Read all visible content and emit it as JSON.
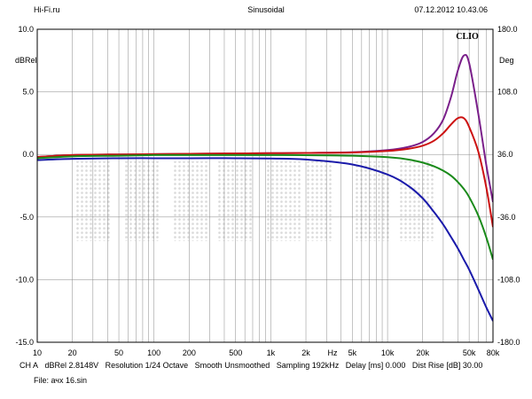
{
  "header": {
    "left": "Hi-Fi.ru",
    "center": "Sinusoidal",
    "right": "07.12.2012 10.43.06"
  },
  "chart_data": {
    "type": "line",
    "brand": "CLIO",
    "x_scale": "log",
    "xlim": [
      10,
      80000
    ],
    "ylim": [
      -15,
      10
    ],
    "y2lim": [
      -180,
      180
    ],
    "ylabel": "dBRel",
    "y2label": "Deg",
    "xunit_label": "Hz",
    "watermark": "Hi-Fi.ru",
    "grid": true,
    "x_ticks": [
      {
        "v": 10,
        "label": "10"
      },
      {
        "v": 20,
        "label": "20"
      },
      {
        "v": 50,
        "label": "50"
      },
      {
        "v": 100,
        "label": "100"
      },
      {
        "v": 200,
        "label": "200"
      },
      {
        "v": 500,
        "label": "500"
      },
      {
        "v": 1000,
        "label": "1k"
      },
      {
        "v": 2000,
        "label": "2k"
      },
      {
        "v": 5000,
        "label": "5k"
      },
      {
        "v": 10000,
        "label": "10k"
      },
      {
        "v": 20000,
        "label": "20k"
      },
      {
        "v": 50000,
        "label": "50k"
      },
      {
        "v": 80000,
        "label": "80k"
      }
    ],
    "y_ticks": [
      {
        "v": 10,
        "label": "10.0"
      },
      {
        "v": 5,
        "label": "5.0"
      },
      {
        "v": 0,
        "label": "0.0"
      },
      {
        "v": -5,
        "label": "-5.0"
      },
      {
        "v": -10,
        "label": "-10.0"
      },
      {
        "v": -15,
        "label": "-15.0"
      }
    ],
    "y2_ticks": [
      {
        "v": 180,
        "label": "180.0"
      },
      {
        "v": 108,
        "label": "108.0"
      },
      {
        "v": 36,
        "label": "36.0"
      },
      {
        "v": -36,
        "label": "-36.0"
      },
      {
        "v": -108,
        "label": "-108.0"
      },
      {
        "v": -180,
        "label": "-180.0"
      }
    ],
    "x": [
      10,
      20,
      50,
      100,
      200,
      500,
      1000,
      2000,
      5000,
      10000,
      15000,
      20000,
      25000,
      30000,
      35000,
      40000,
      45000,
      50000,
      60000,
      70000,
      80000
    ],
    "series": [
      {
        "color": "#7a1f8a",
        "values": [
          -0.2,
          -0.05,
          0.0,
          0.02,
          0.05,
          0.08,
          0.1,
          0.12,
          0.18,
          0.35,
          0.6,
          1.0,
          1.7,
          2.8,
          4.6,
          6.7,
          7.9,
          7.3,
          3.2,
          -0.8,
          -3.8
        ]
      },
      {
        "color": "#cc1111",
        "values": [
          -0.2,
          -0.05,
          0.0,
          0.02,
          0.05,
          0.08,
          0.1,
          0.12,
          0.16,
          0.28,
          0.45,
          0.7,
          1.1,
          1.7,
          2.4,
          2.9,
          2.9,
          2.2,
          0.2,
          -2.6,
          -5.8
        ]
      },
      {
        "color": "#1a8a1a",
        "values": [
          -0.3,
          -0.15,
          -0.1,
          -0.05,
          -0.05,
          -0.05,
          -0.05,
          -0.06,
          -0.1,
          -0.22,
          -0.4,
          -0.65,
          -0.95,
          -1.3,
          -1.7,
          -2.2,
          -2.75,
          -3.4,
          -4.9,
          -6.6,
          -8.4
        ]
      },
      {
        "color": "#1a1aaa",
        "values": [
          -0.45,
          -0.35,
          -0.3,
          -0.3,
          -0.3,
          -0.3,
          -0.32,
          -0.4,
          -0.8,
          -1.6,
          -2.5,
          -3.5,
          -4.6,
          -5.6,
          -6.6,
          -7.5,
          -8.4,
          -9.2,
          -10.8,
          -12.2,
          -13.3
        ]
      }
    ]
  },
  "footer": {
    "channel": "CH A",
    "unit": "dBRel 2.8148V",
    "resolution": "Resolution 1/24 Octave",
    "smoothing": "Smooth Unsmoothed",
    "sampling": "Sampling 192kHz",
    "delay": "Delay [ms] 0.000",
    "dist_rise": "Dist Rise [dB] 30.00",
    "file": "File: ачх 16.sin"
  }
}
